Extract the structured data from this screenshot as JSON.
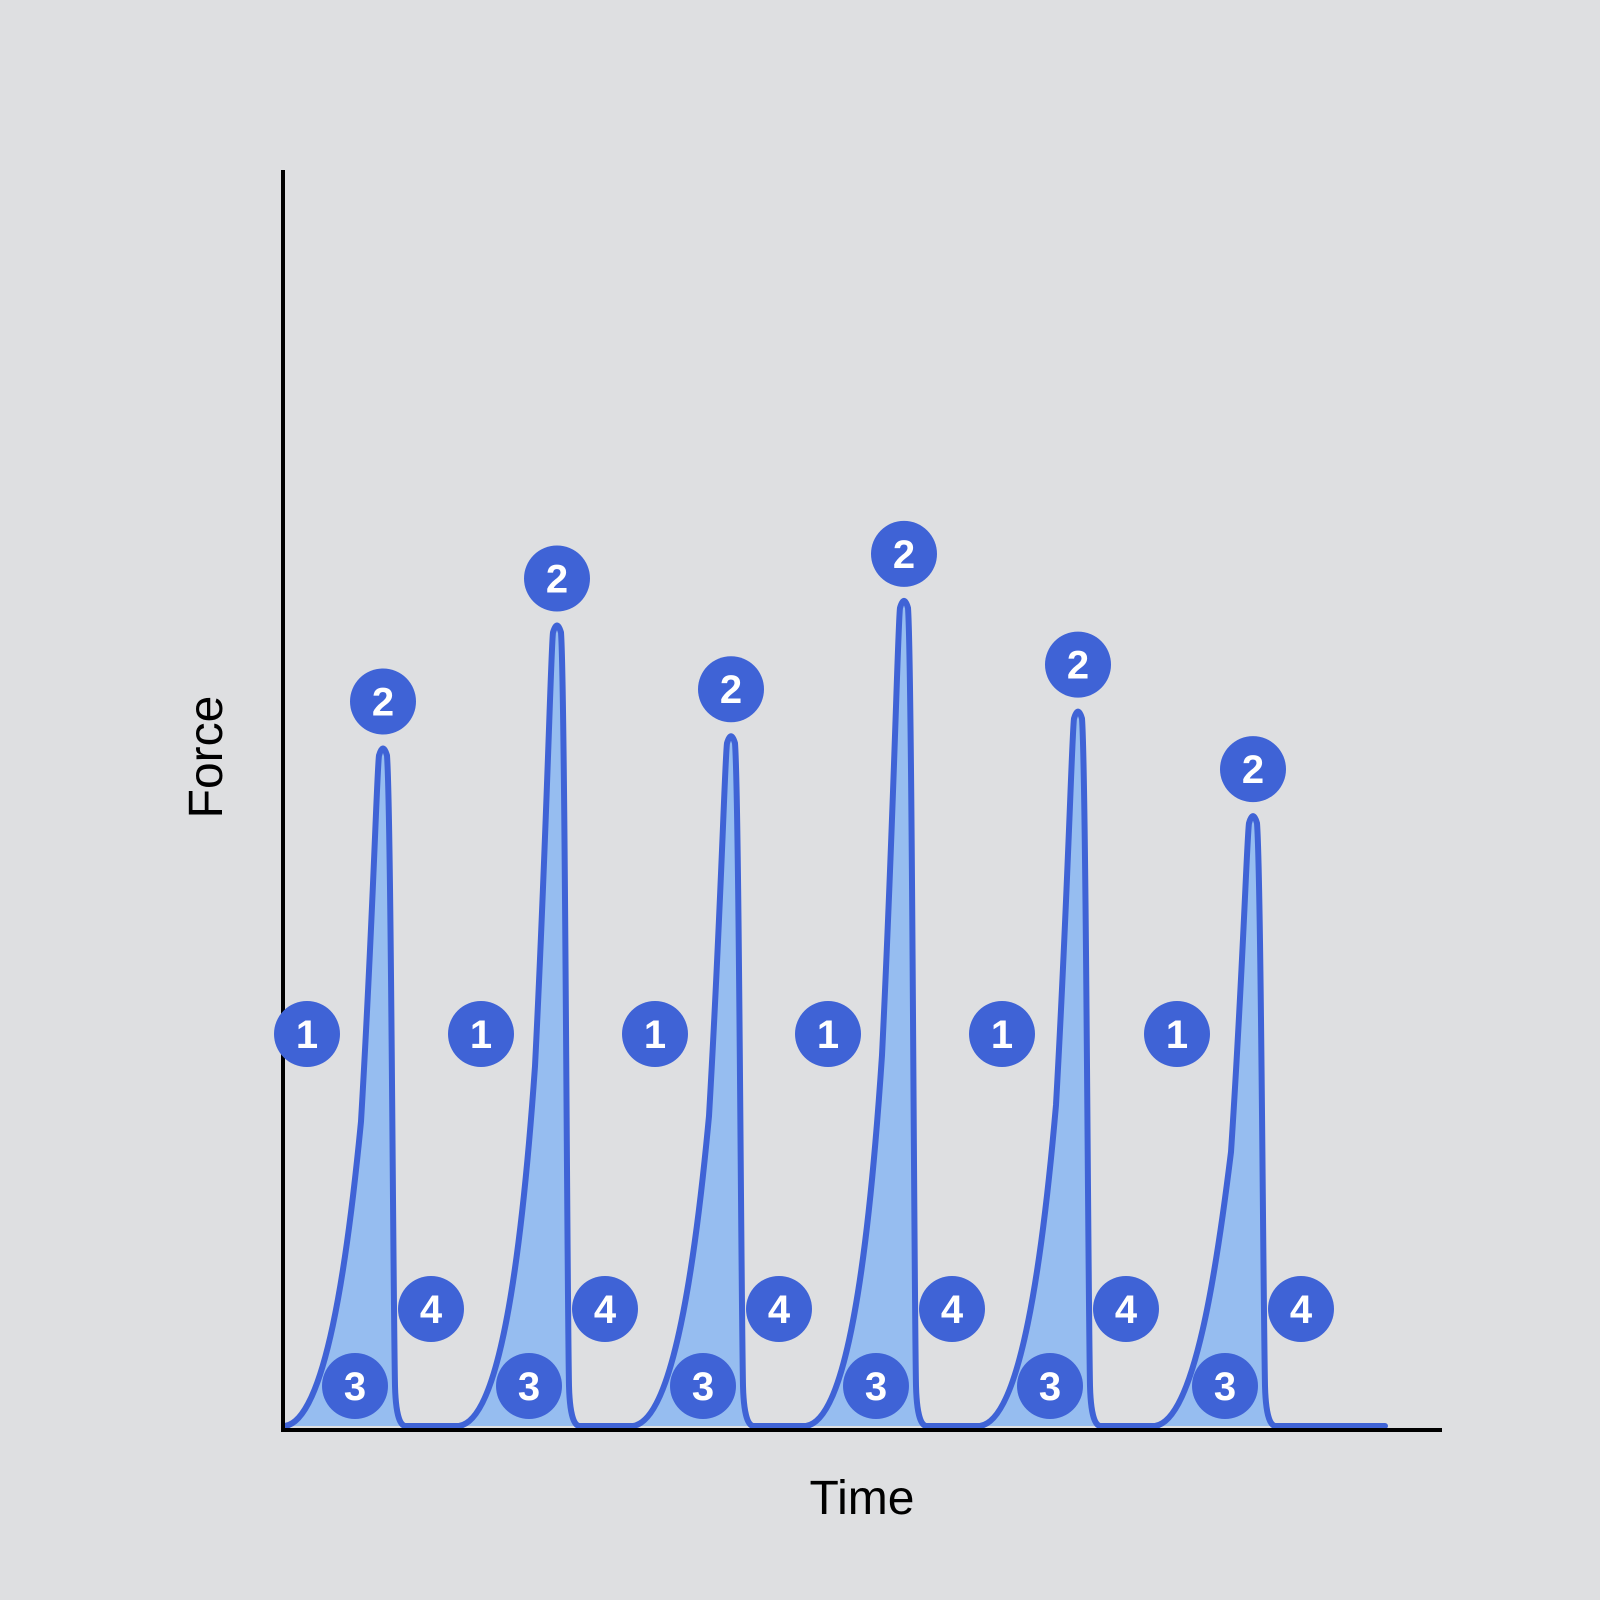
{
  "colors": {
    "background": "#dedfe1",
    "axis": "#000000",
    "line": "#3f63d6",
    "fill": "#96bdf0",
    "badge": "#3f63d6",
    "badge_text": "#ffffff"
  },
  "chart_data": {
    "type": "area",
    "title": "",
    "xlabel": "Time",
    "ylabel": "Force",
    "x_ticks": false,
    "y_ticks": false,
    "grid": false,
    "legend": "none",
    "ylim": [
      0,
      1
    ],
    "series": [
      {
        "peaks": [
          {
            "peak_relative_height": 0.55
          },
          {
            "peak_relative_height": 0.65
          },
          {
            "peak_relative_height": 0.56
          },
          {
            "peak_relative_height": 0.67
          },
          {
            "peak_relative_height": 0.58
          },
          {
            "peak_relative_height": 0.495
          }
        ]
      }
    ],
    "phase_labels": [
      "1",
      "2",
      "3",
      "4"
    ]
  }
}
